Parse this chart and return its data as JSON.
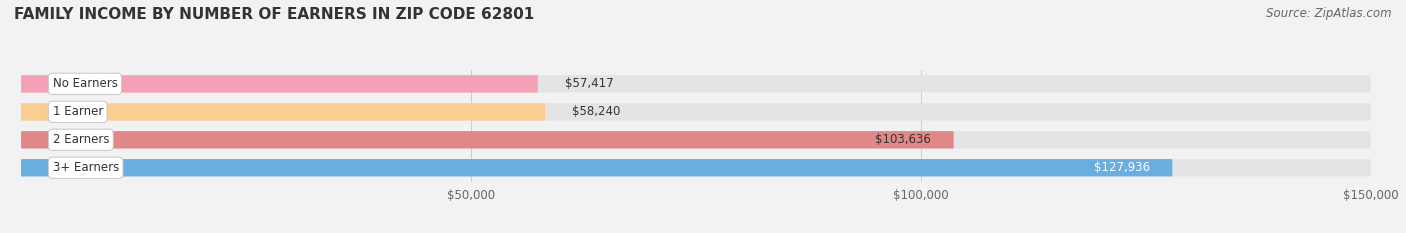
{
  "title": "FAMILY INCOME BY NUMBER OF EARNERS IN ZIP CODE 62801",
  "source_text": "Source: ZipAtlas.com",
  "categories": [
    "No Earners",
    "1 Earner",
    "2 Earners",
    "3+ Earners"
  ],
  "values": [
    57417,
    58240,
    103636,
    127936
  ],
  "bar_colors": [
    "#f4a0b5",
    "#f9ce90",
    "#e08888",
    "#6aaee0"
  ],
  "label_colors": [
    "#333333",
    "#333333",
    "#333333",
    "#ffffff"
  ],
  "value_labels": [
    "$57,417",
    "$58,240",
    "$103,636",
    "$127,936"
  ],
  "xlim": [
    0,
    150000
  ],
  "xticks": [
    50000,
    100000,
    150000
  ],
  "xtick_labels": [
    "$50,000",
    "$100,000",
    "$150,000"
  ],
  "background_color": "#f2f2f2",
  "bar_background_color": "#e4e4e4",
  "title_fontsize": 11,
  "source_fontsize": 8.5,
  "bar_height": 0.62,
  "fig_width": 14.06,
  "fig_height": 2.33
}
